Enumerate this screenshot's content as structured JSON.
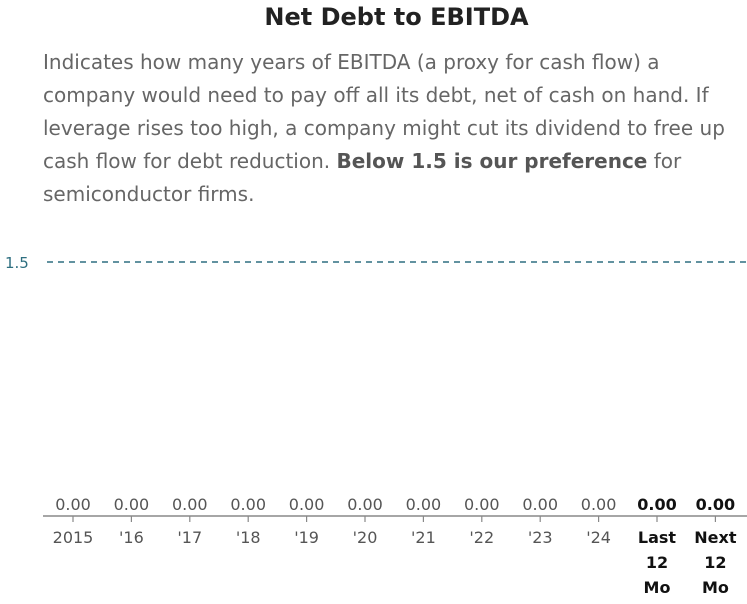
{
  "chart_data": {
    "type": "bar",
    "title": "Net Debt to EBITDA",
    "description": {
      "text": "Indicates how many years of EBITDA (a proxy for cash flow) a company would need to pay off all its debt, net of cash on hand. If leverage rises too high, a company might cut its dividend to free up cash flow for debt reduction. ",
      "emphasis": "Below 1.5 is our preference",
      "tail": " for semiconductor firms."
    },
    "categories": [
      "2015",
      "'16",
      "'17",
      "'18",
      "'19",
      "'20",
      "'21",
      "'22",
      "'23",
      "'24",
      "Last\n12\nMo",
      "Next\n12\nMo"
    ],
    "values": [
      0.0,
      0.0,
      0.0,
      0.0,
      0.0,
      0.0,
      0.0,
      0.0,
      0.0,
      0.0,
      0.0,
      0.0
    ],
    "value_labels": [
      "0.00",
      "0.00",
      "0.00",
      "0.00",
      "0.00",
      "0.00",
      "0.00",
      "0.00",
      "0.00",
      "0.00",
      "0.00",
      "0.00"
    ],
    "bold_categories": [
      10,
      11
    ],
    "reference_line": {
      "value": 1.5,
      "label": "1.5",
      "color": "#2e6f80"
    },
    "ylim": [
      0,
      1.5
    ],
    "xlabel": "",
    "ylabel": "",
    "colors": {
      "axis": "#888888",
      "label": "#555555",
      "bold_label": "#111111"
    }
  }
}
